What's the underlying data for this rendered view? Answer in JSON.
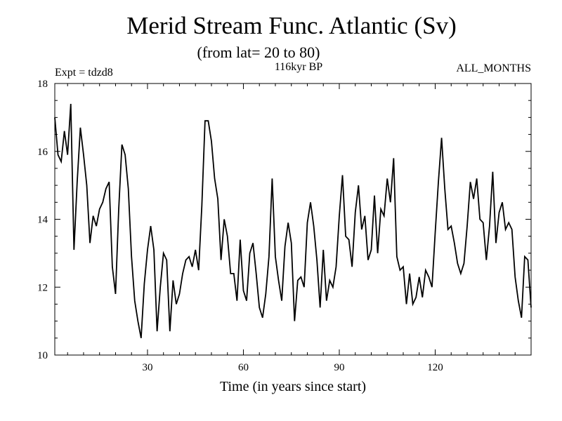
{
  "chart_data": {
    "type": "line",
    "title": "Merid Stream Func. Atlantic (Sv)",
    "subtitle": "(from lat= 20 to 80)",
    "annotation_left": "Expt = tdzd8",
    "annotation_center": "116kyr BP",
    "annotation_right": "ALL_MONTHS",
    "xlabel": "Time (in years since start)",
    "ylabel": "",
    "xlim": [
      1,
      150
    ],
    "ylim": [
      10,
      18
    ],
    "x_ticks": [
      30,
      60,
      90,
      120
    ],
    "y_ticks": [
      10,
      12,
      14,
      16,
      18
    ],
    "series": [
      {
        "name": "Merid Stream Func. Atlantic",
        "x_start": 1,
        "x_step": 1,
        "values": [
          17.0,
          15.9,
          15.7,
          16.6,
          15.9,
          17.4,
          13.1,
          15.1,
          16.7,
          15.9,
          15.0,
          13.3,
          14.1,
          13.8,
          14.3,
          14.5,
          14.9,
          15.1,
          12.6,
          11.8,
          14.3,
          16.2,
          15.9,
          14.9,
          12.9,
          11.6,
          11.0,
          10.5,
          12.1,
          13.1,
          13.8,
          13.1,
          10.7,
          12.0,
          13.0,
          12.8,
          10.7,
          12.2,
          11.5,
          11.8,
          12.4,
          12.8,
          12.9,
          12.6,
          13.1,
          12.5,
          14.4,
          16.9,
          16.9,
          16.3,
          15.2,
          14.6,
          12.8,
          14.0,
          13.5,
          12.4,
          12.4,
          11.6,
          13.4,
          11.9,
          11.6,
          13.0,
          13.3,
          12.4,
          11.4,
          11.1,
          11.8,
          12.9,
          15.2,
          12.9,
          12.2,
          11.6,
          13.2,
          13.9,
          13.3,
          11.0,
          12.2,
          12.3,
          12.0,
          13.9,
          14.5,
          13.8,
          12.8,
          11.4,
          13.1,
          11.6,
          12.2,
          12.0,
          12.6,
          14.1,
          15.3,
          13.5,
          13.4,
          12.6,
          14.2,
          15.0,
          13.7,
          14.1,
          12.8,
          13.1,
          14.7,
          13.0,
          14.3,
          14.1,
          15.2,
          14.5,
          15.8,
          12.9,
          12.5,
          12.6,
          11.5,
          12.4,
          11.5,
          11.7,
          12.3,
          11.7,
          12.5,
          12.3,
          12.0,
          13.6,
          15.1,
          16.4,
          14.9,
          13.7,
          13.8,
          13.3,
          12.7,
          12.4,
          12.7,
          13.8,
          15.1,
          14.6,
          15.2,
          14.0,
          13.9,
          12.8,
          13.8,
          15.4,
          13.3,
          14.2,
          14.5,
          13.7,
          13.9,
          13.7,
          12.3,
          11.6,
          11.1,
          12.9,
          12.8,
          11.4
        ]
      }
    ]
  }
}
